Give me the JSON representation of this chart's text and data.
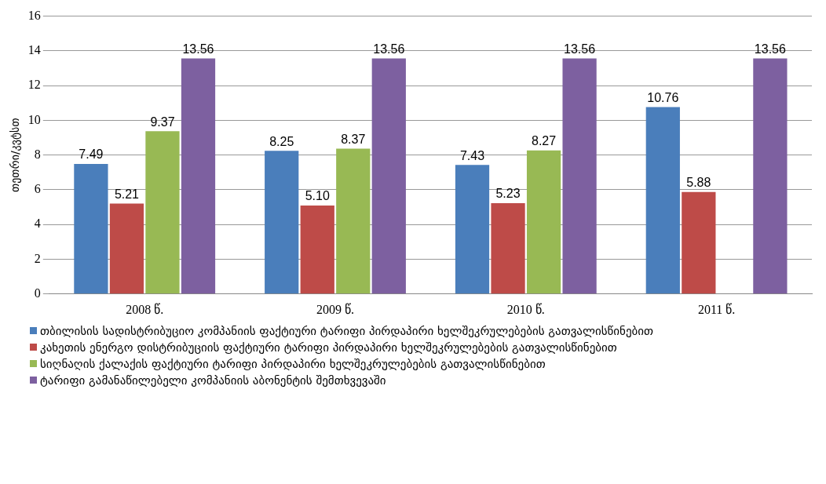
{
  "chart_data": {
    "type": "bar",
    "ylabel": "თეთრი/კვტსთ",
    "categories": [
      "2008 წ.",
      "2009 წ.",
      "2010 წ.",
      "2011 წ."
    ],
    "series": [
      {
        "name": "თბილისის სადისტრიბუციო კომპანიის ფაქტიური ტარიფი პირდაპირი ხელშეკრულებების გათვალისწინებით",
        "color": "#4a7ebb",
        "values": [
          7.49,
          8.25,
          7.43,
          10.76
        ],
        "value_labels": [
          "7.49",
          "8.25",
          "7.43",
          "10.76"
        ]
      },
      {
        "name": "კახეთის ენერგო დისტრიბუციის ფაქტიური ტარიფი პირდაპირი ხელშეკრულებების გათვალისწინებით",
        "color": "#be4b48",
        "values": [
          5.21,
          5.1,
          5.23,
          5.88
        ],
        "value_labels": [
          "5.21",
          "5.10",
          "5.23",
          "5.88"
        ]
      },
      {
        "name": "სიღნაღის ქალაქის ფაქტიური ტარიფი პირდაპირი ხელშეკრულებების გათვალისწინებით",
        "color": "#98b954",
        "values": [
          9.37,
          8.37,
          8.27,
          null
        ],
        "value_labels": [
          "9.37",
          "8.37",
          "8.27",
          null
        ]
      },
      {
        "name": "ტარიფი გამანაწილებელი კომპანიის აბონენტის შემთხვევაში",
        "color": "#7d60a0",
        "values": [
          13.56,
          13.56,
          13.56,
          13.56
        ],
        "value_labels": [
          "13.56",
          "13.56",
          "13.56",
          "13.56"
        ]
      }
    ],
    "ylim": [
      0,
      16
    ],
    "yticks": [
      0,
      2,
      4,
      6,
      8,
      10,
      12,
      14,
      16
    ],
    "grid": "y",
    "legend": "bottom"
  }
}
